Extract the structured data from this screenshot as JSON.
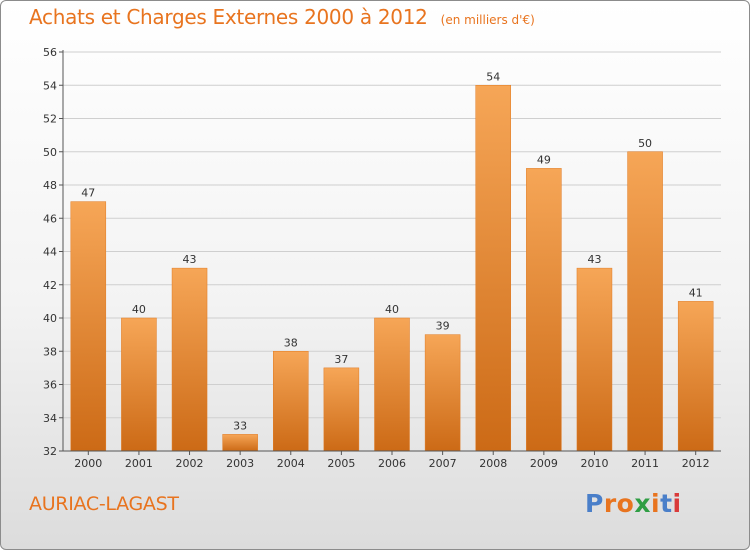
{
  "header": {
    "title": "Achats et Charges Externes 2000 à 2012",
    "unit_note": "(en milliers d'€)"
  },
  "footer": {
    "place": "AURIAC-LAGAST",
    "brand": {
      "text": "Proxiti",
      "letter_colors": [
        "#4a7fc9",
        "#e8741f",
        "#e8741f",
        "#2f9e44",
        "#e8741f",
        "#4a7fc9",
        "#d93a3a"
      ]
    }
  },
  "colors": {
    "accent": "#e8741f",
    "bar_top": "#f6a657",
    "bar_bottom": "#cc6a16",
    "grid": "#cfcfcf",
    "axis_text": "#333333"
  },
  "chart_data": {
    "type": "bar",
    "categories": [
      "2000",
      "2001",
      "2002",
      "2003",
      "2004",
      "2005",
      "2006",
      "2007",
      "2008",
      "2009",
      "2010",
      "2011",
      "2012"
    ],
    "values": [
      47,
      40,
      43,
      33,
      38,
      37,
      40,
      39,
      54,
      49,
      43,
      50,
      41
    ],
    "data_labels": [
      "47",
      "40",
      "43",
      "33",
      "38",
      "37",
      "40",
      "39",
      "54",
      "49",
      "43",
      "50",
      "41"
    ],
    "title": "Achats et Charges Externes 2000 à 2012",
    "ylim": [
      32,
      56
    ],
    "yticks": [
      "32",
      "34",
      "36",
      "38",
      "40",
      "42",
      "44",
      "46",
      "48",
      "50",
      "52",
      "54",
      "56"
    ],
    "grid": true
  }
}
